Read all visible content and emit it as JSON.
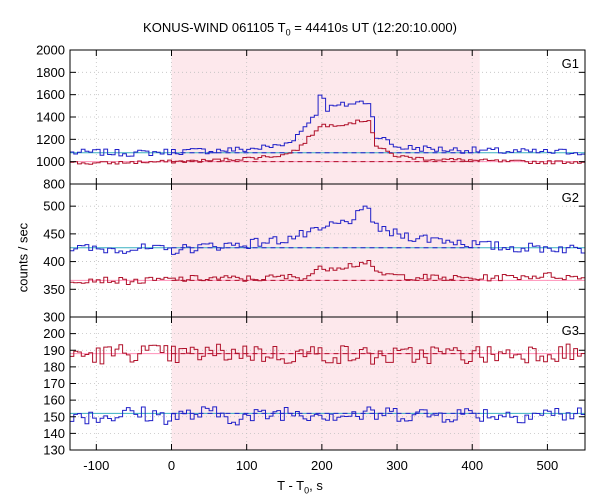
{
  "title_prefix": "KONUS-WIND 061105 T",
  "title_sub": "0",
  "title_suffix": " = 44410s UT (12:20:10.000)",
  "xlabel_prefix": "T - T",
  "xlabel_sub": "0",
  "xlabel_suffix": ", s",
  "ylabel": "counts / sec",
  "colors": {
    "shade": "#fde8ec",
    "high_series": "#2020c8",
    "low_series": "#b0102a",
    "high_bg": "#38b0c0",
    "low_bg": "#ff90b8",
    "grid": "#c0c0c0"
  },
  "chart_data": [
    {
      "type": "line",
      "panel": "G1",
      "xlim": [
        -135,
        550
      ],
      "ylim": [
        800,
        2000
      ],
      "yticks": [
        800,
        1000,
        1200,
        1400,
        1600,
        1800,
        2000
      ],
      "xticks": [
        -100,
        0,
        100,
        200,
        300,
        400,
        500
      ],
      "shaded_interval": [
        0,
        410
      ],
      "background_levels": [
        1080,
        1000
      ],
      "grid": true,
      "series_note": "step histograms, 5 s bins approx.",
      "series": [
        {
          "points": [
            [
              -135,
              1080
            ],
            [
              -100,
              1085
            ],
            [
              -50,
              1075
            ],
            [
              0,
              1090
            ],
            [
              50,
              1100
            ],
            [
              100,
              1110
            ],
            [
              150,
              1150
            ],
            [
              170,
              1250
            ],
            [
              185,
              1380
            ],
            [
              195,
              1460
            ],
            [
              200,
              1700
            ],
            [
              205,
              1470
            ],
            [
              215,
              1490
            ],
            [
              230,
              1510
            ],
            [
              250,
              1530
            ],
            [
              265,
              1540
            ],
            [
              270,
              1250
            ],
            [
              280,
              1210
            ],
            [
              290,
              1170
            ],
            [
              300,
              1130
            ],
            [
              330,
              1120
            ],
            [
              360,
              1110
            ],
            [
              410,
              1100
            ],
            [
              450,
              1090
            ],
            [
              500,
              1085
            ],
            [
              550,
              1090
            ]
          ]
        },
        {
          "points": [
            [
              -135,
              990
            ],
            [
              -100,
              985
            ],
            [
              -50,
              995
            ],
            [
              0,
              1000
            ],
            [
              50,
              1010
            ],
            [
              100,
              1030
            ],
            [
              150,
              1060
            ],
            [
              170,
              1120
            ],
            [
              185,
              1230
            ],
            [
              195,
              1300
            ],
            [
              200,
              1350
            ],
            [
              205,
              1310
            ],
            [
              215,
              1330
            ],
            [
              230,
              1340
            ],
            [
              250,
              1360
            ],
            [
              265,
              1380
            ],
            [
              270,
              1150
            ],
            [
              280,
              1110
            ],
            [
              290,
              1080
            ],
            [
              300,
              1050
            ],
            [
              330,
              1030
            ],
            [
              360,
              1020
            ],
            [
              410,
              1010
            ],
            [
              450,
              1000
            ],
            [
              500,
              995
            ],
            [
              550,
              1000
            ]
          ]
        }
      ]
    },
    {
      "type": "line",
      "panel": "G2",
      "xlim": [
        -135,
        550
      ],
      "ylim": [
        300,
        540
      ],
      "yticks": [
        300,
        350,
        400,
        450,
        500
      ],
      "shaded_interval": [
        0,
        410
      ],
      "background_levels": [
        425,
        366
      ],
      "grid": true,
      "series": [
        {
          "points": [
            [
              -135,
              425
            ],
            [
              -100,
              422
            ],
            [
              -50,
              424
            ],
            [
              0,
              420
            ],
            [
              50,
              428
            ],
            [
              100,
              432
            ],
            [
              150,
              440
            ],
            [
              180,
              450
            ],
            [
              200,
              455
            ],
            [
              210,
              465
            ],
            [
              230,
              470
            ],
            [
              250,
              485
            ],
            [
              262,
              495
            ],
            [
              270,
              470
            ],
            [
              280,
              455
            ],
            [
              300,
              450
            ],
            [
              330,
              443
            ],
            [
              360,
              440
            ],
            [
              410,
              430
            ],
            [
              450,
              425
            ],
            [
              500,
              425
            ],
            [
              550,
              422
            ]
          ]
        },
        {
          "points": [
            [
              -135,
              366
            ],
            [
              -100,
              368
            ],
            [
              -50,
              364
            ],
            [
              0,
              368
            ],
            [
              50,
              370
            ],
            [
              100,
              369
            ],
            [
              150,
              372
            ],
            [
              180,
              372
            ],
            [
              190,
              382
            ],
            [
              200,
              388
            ],
            [
              230,
              392
            ],
            [
              250,
              396
            ],
            [
              262,
              402
            ],
            [
              270,
              378
            ],
            [
              280,
              378
            ],
            [
              300,
              374
            ],
            [
              330,
              372
            ],
            [
              360,
              370
            ],
            [
              410,
              370
            ],
            [
              450,
              372
            ],
            [
              500,
              375
            ],
            [
              550,
              370
            ]
          ]
        }
      ]
    },
    {
      "type": "line",
      "panel": "G3",
      "xlim": [
        -135,
        550
      ],
      "ylim": [
        130,
        210
      ],
      "yticks": [
        130,
        140,
        150,
        160,
        170,
        180,
        190,
        200
      ],
      "shaded_interval": [
        0,
        410
      ],
      "background_levels": [
        152,
        188
      ],
      "grid": true,
      "series": [
        {
          "points": [
            [
              -135,
              152
            ],
            [
              -100,
              150
            ],
            [
              -50,
              152
            ],
            [
              0,
              150
            ],
            [
              50,
              152
            ],
            [
              100,
              149
            ],
            [
              150,
              153
            ],
            [
              200,
              152
            ],
            [
              250,
              151
            ],
            [
              300,
              152
            ],
            [
              350,
              151
            ],
            [
              400,
              152
            ],
            [
              450,
              151
            ],
            [
              500,
              152
            ],
            [
              550,
              151
            ]
          ]
        },
        {
          "points": [
            [
              -135,
              188
            ],
            [
              -100,
              187
            ],
            [
              -50,
              189
            ],
            [
              0,
              187
            ],
            [
              50,
              188
            ],
            [
              100,
              189
            ],
            [
              150,
              187
            ],
            [
              200,
              188
            ],
            [
              250,
              187
            ],
            [
              300,
              186
            ],
            [
              350,
              188
            ],
            [
              400,
              187
            ],
            [
              450,
              188
            ],
            [
              500,
              189
            ],
            [
              550,
              188
            ]
          ]
        }
      ]
    }
  ],
  "panel_labels": [
    "G1",
    "G2",
    "G3"
  ],
  "xtick_labels": [
    "-100",
    "0",
    "100",
    "200",
    "300",
    "400",
    "500"
  ]
}
